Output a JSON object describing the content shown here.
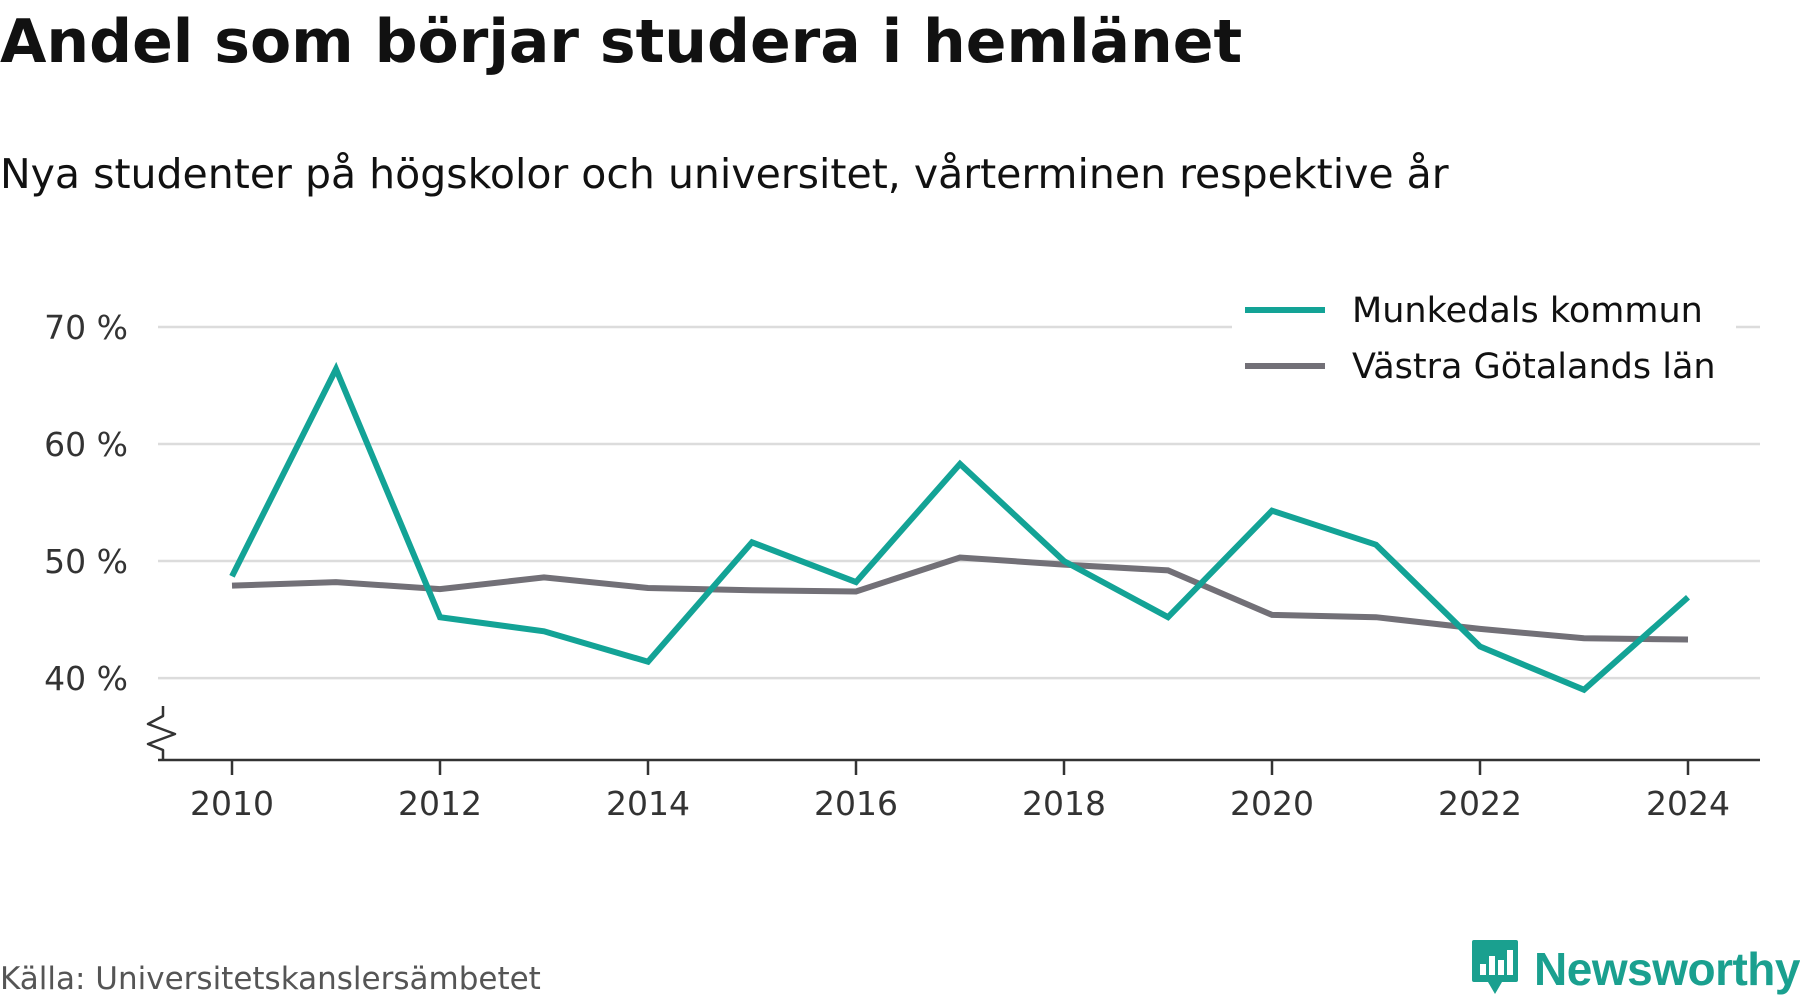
{
  "chart_data": {
    "type": "line",
    "title": "Andel som börjar studera i hemlänet",
    "subtitle": "Nya studenter på högskolor och universitet, vårterminen respektive år",
    "xlabel": "",
    "ylabel": "",
    "x": [
      2010,
      2011,
      2012,
      2013,
      2014,
      2015,
      2016,
      2017,
      2018,
      2019,
      2020,
      2021,
      2022,
      2023,
      2024
    ],
    "series": [
      {
        "name": "Munkedals kommun",
        "color": "#13a396",
        "values": [
          48.7,
          66.4,
          45.2,
          44.0,
          41.4,
          51.6,
          48.2,
          58.3,
          50.0,
          45.2,
          54.3,
          51.4,
          42.7,
          39.0,
          46.9
        ]
      },
      {
        "name": "Västra Götalands län",
        "color": "#727077",
        "values": [
          47.9,
          48.2,
          47.6,
          48.6,
          47.7,
          47.5,
          47.4,
          50.3,
          49.7,
          49.2,
          45.4,
          45.2,
          44.2,
          43.4,
          43.3
        ]
      }
    ],
    "ylim": [
      33,
      70
    ],
    "xlim": [
      2010,
      2024
    ],
    "y_ticks": [
      40,
      50,
      60,
      70
    ],
    "y_tick_labels": [
      "40 %",
      "50 %",
      "60 %",
      "70 %"
    ],
    "x_ticks": [
      2010,
      2012,
      2014,
      2016,
      2018,
      2020,
      2022,
      2024
    ],
    "x_tick_labels": [
      "2010",
      "2012",
      "2014",
      "2016",
      "2018",
      "2020",
      "2022",
      "2024"
    ],
    "grid": "horizontal",
    "y_axis_break": true,
    "legend_position": "top-right",
    "gridline_color": "#dcdcdc",
    "axis_color": "#333333"
  },
  "footer": {
    "source": "Källa: Universitetskanslersämbetet",
    "brand": "Newsworthy",
    "brand_color": "#1aa08f",
    "brand_icon": "bar-chart-icon"
  }
}
